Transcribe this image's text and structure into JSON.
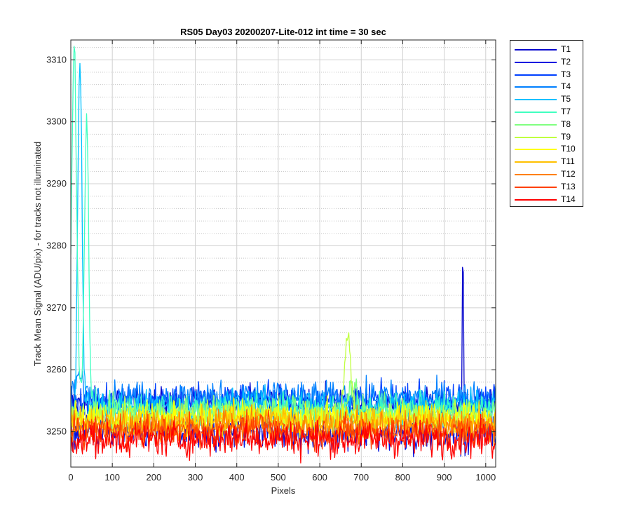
{
  "chart_data": {
    "type": "line",
    "title": "RS05 Day03 20200207-Lite-012 int time = 30 sec",
    "xlabel": "Pixels",
    "ylabel": "Track Mean Signal (ADU/pix) - for tracks not illuminated",
    "xlim": [
      0,
      1024
    ],
    "ylim": [
      3244.3,
      3313.2
    ],
    "xticks": [
      0,
      100,
      200,
      300,
      400,
      500,
      600,
      700,
      800,
      900,
      1000
    ],
    "yticks": [
      3250,
      3260,
      3270,
      3280,
      3290,
      3300,
      3310
    ],
    "grid": true,
    "minor_grid_y": true,
    "legend_position": "outside-top-right",
    "series": [
      {
        "name": "T1",
        "color": "#0000cc",
        "base": 3254.5,
        "noise": 1.3,
        "peaks": [
          {
            "x": 945,
            "y": 3283.0,
            "w": 1.2
          }
        ]
      },
      {
        "name": "T2",
        "color": "#0010e0",
        "base": 3250.0,
        "noise": 1.6,
        "peaks": []
      },
      {
        "name": "T3",
        "color": "#0040ff",
        "base": 3255.0,
        "noise": 1.3,
        "peaks": []
      },
      {
        "name": "T4",
        "color": "#0080ff",
        "base": 3255.5,
        "noise": 1.3,
        "peaks": [
          {
            "x": 20,
            "y": 3258.5,
            "w": 12
          }
        ]
      },
      {
        "name": "T5",
        "color": "#00c0ff",
        "base": 3254.0,
        "noise": 1.3,
        "peaks": [
          {
            "x": 22,
            "y": 3310.0,
            "w": 5
          }
        ]
      },
      {
        "name": "T7",
        "color": "#40ffc0",
        "base": 3253.5,
        "noise": 1.3,
        "peaks": [
          {
            "x": 8,
            "y": 3313.2,
            "w": 6
          },
          {
            "x": 38,
            "y": 3301.0,
            "w": 5
          }
        ]
      },
      {
        "name": "T8",
        "color": "#80ff80",
        "base": 3253.0,
        "noise": 1.3,
        "peaks": [
          {
            "x": 680,
            "y": 3258.0,
            "w": 10
          }
        ]
      },
      {
        "name": "T9",
        "color": "#c0ff40",
        "base": 3252.5,
        "noise": 1.3,
        "peaks": [
          {
            "x": 667,
            "y": 3266.0,
            "w": 7
          }
        ]
      },
      {
        "name": "T10",
        "color": "#ffff00",
        "base": 3252.0,
        "noise": 1.3,
        "peaks": []
      },
      {
        "name": "T11",
        "color": "#ffc000",
        "base": 3251.5,
        "noise": 1.3,
        "peaks": []
      },
      {
        "name": "T12",
        "color": "#ff8000",
        "base": 3250.8,
        "noise": 1.3,
        "peaks": []
      },
      {
        "name": "T13",
        "color": "#ff4000",
        "base": 3250.0,
        "noise": 1.3,
        "peaks": []
      },
      {
        "name": "T14",
        "color": "#ff0000",
        "base": 3248.8,
        "noise": 1.4,
        "peaks": []
      }
    ]
  }
}
